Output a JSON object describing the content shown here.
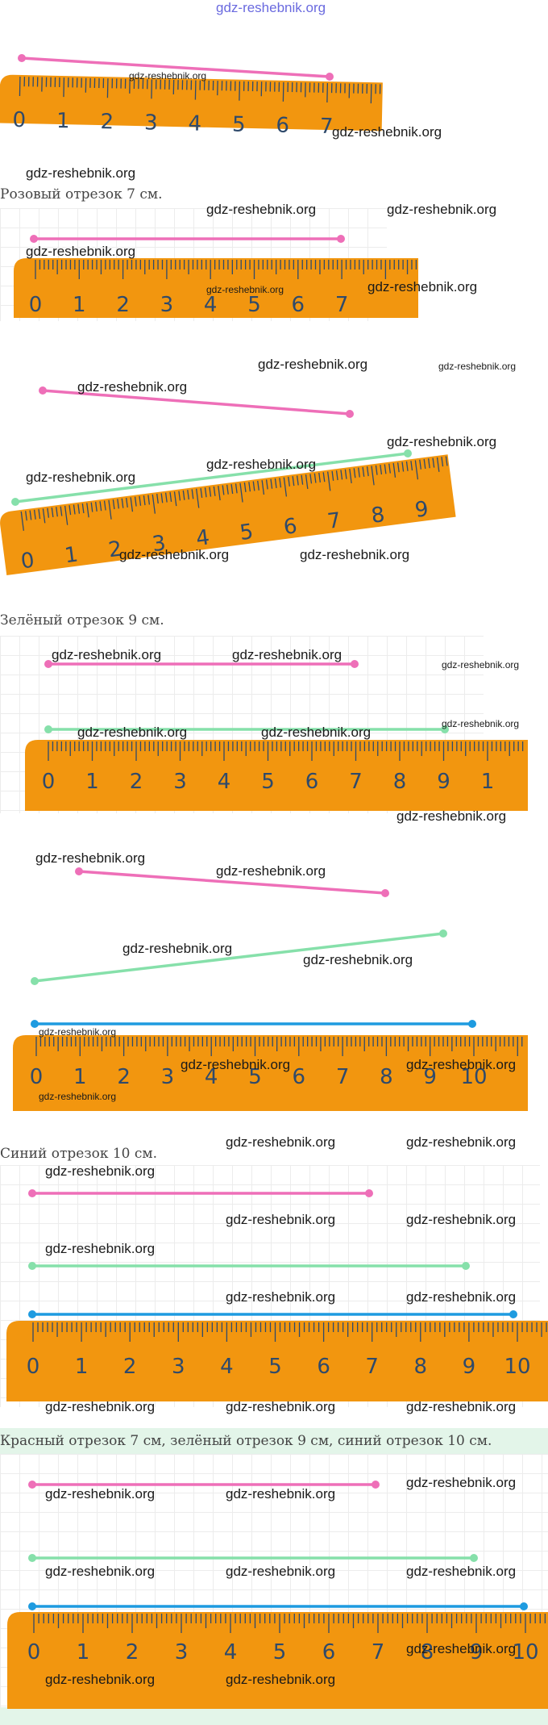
{
  "site_header": "gdz-reshebnik.org",
  "watermark": "gdz-reshebnik.org",
  "captions": {
    "pink": "Розовый отрезок 7 см.",
    "green": "Зелёный отрезок 9 см.",
    "blue": "Синий отрезок 10 см.",
    "summary": "Красный отрезок 7 см, зелёный отрезок 9 см, синий отрезок 10 см."
  },
  "segments": {
    "pink_cm": 7,
    "green_cm": 9,
    "blue_cm": 10
  },
  "ruler_labels": {
    "r1": [
      "0",
      "1",
      "2",
      "3",
      "4",
      "5",
      "6",
      "7"
    ],
    "r2": [
      "0",
      "1",
      "2",
      "3",
      "4",
      "5",
      "6",
      "7"
    ],
    "r3": [
      "0",
      "1",
      "2",
      "3",
      "4",
      "5",
      "6",
      "7",
      "8",
      "9"
    ],
    "r4": [
      "0",
      "1",
      "2",
      "3",
      "4",
      "5",
      "6",
      "7",
      "8",
      "9",
      "1"
    ],
    "r5": [
      "0",
      "1",
      "2",
      "3",
      "4",
      "5",
      "6",
      "7",
      "8",
      "9",
      "10"
    ],
    "r6": [
      "0",
      "1",
      "2",
      "3",
      "4",
      "5",
      "6",
      "7",
      "8",
      "9",
      "10"
    ],
    "r7": [
      "0",
      "1",
      "2",
      "3",
      "4",
      "5",
      "6",
      "7",
      "8",
      "9",
      "10"
    ]
  },
  "colors": {
    "ruler": "#f2960f",
    "ruler_text": "#2f4a6b",
    "pink": "#ee6fb8",
    "green": "#86e0aa",
    "blue": "#1e9be0"
  }
}
